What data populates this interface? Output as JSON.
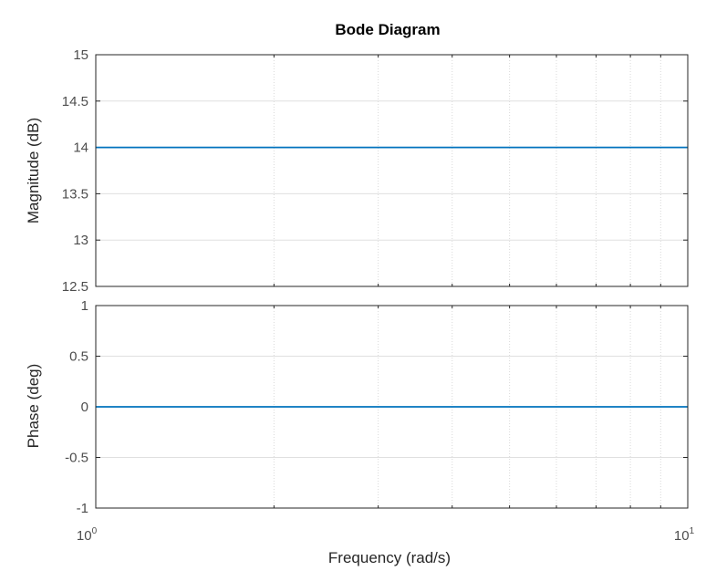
{
  "chart_data": {
    "type": "line",
    "title": "Bode Diagram",
    "xlabel": "Frequency  (rad/s)",
    "xscale": "log",
    "xlim": [
      1,
      10
    ],
    "x_ticks": [
      {
        "base": "10",
        "exp": "0"
      },
      {
        "base": "10",
        "exp": "1"
      }
    ],
    "grid": true,
    "line_color": "#0072BD",
    "panels": [
      {
        "ylabel": "Magnitude (dB)",
        "ylim": [
          12.5,
          15
        ],
        "y_ticks": [
          "12.5",
          "13",
          "13.5",
          "14",
          "14.5",
          "15"
        ],
        "y_tick_values": [
          12.5,
          13,
          13.5,
          14,
          14.5,
          15
        ],
        "series": [
          {
            "x": [
              1,
              10
            ],
            "values": [
              14,
              14
            ]
          }
        ]
      },
      {
        "ylabel": "Phase (deg)",
        "ylim": [
          -1,
          1
        ],
        "y_ticks": [
          "-1",
          "-0.5",
          "0",
          "0.5",
          "1"
        ],
        "y_tick_values": [
          -1,
          -0.5,
          0,
          0.5,
          1
        ],
        "series": [
          {
            "x": [
              1,
              10
            ],
            "values": [
              0,
              0
            ]
          }
        ]
      }
    ]
  }
}
